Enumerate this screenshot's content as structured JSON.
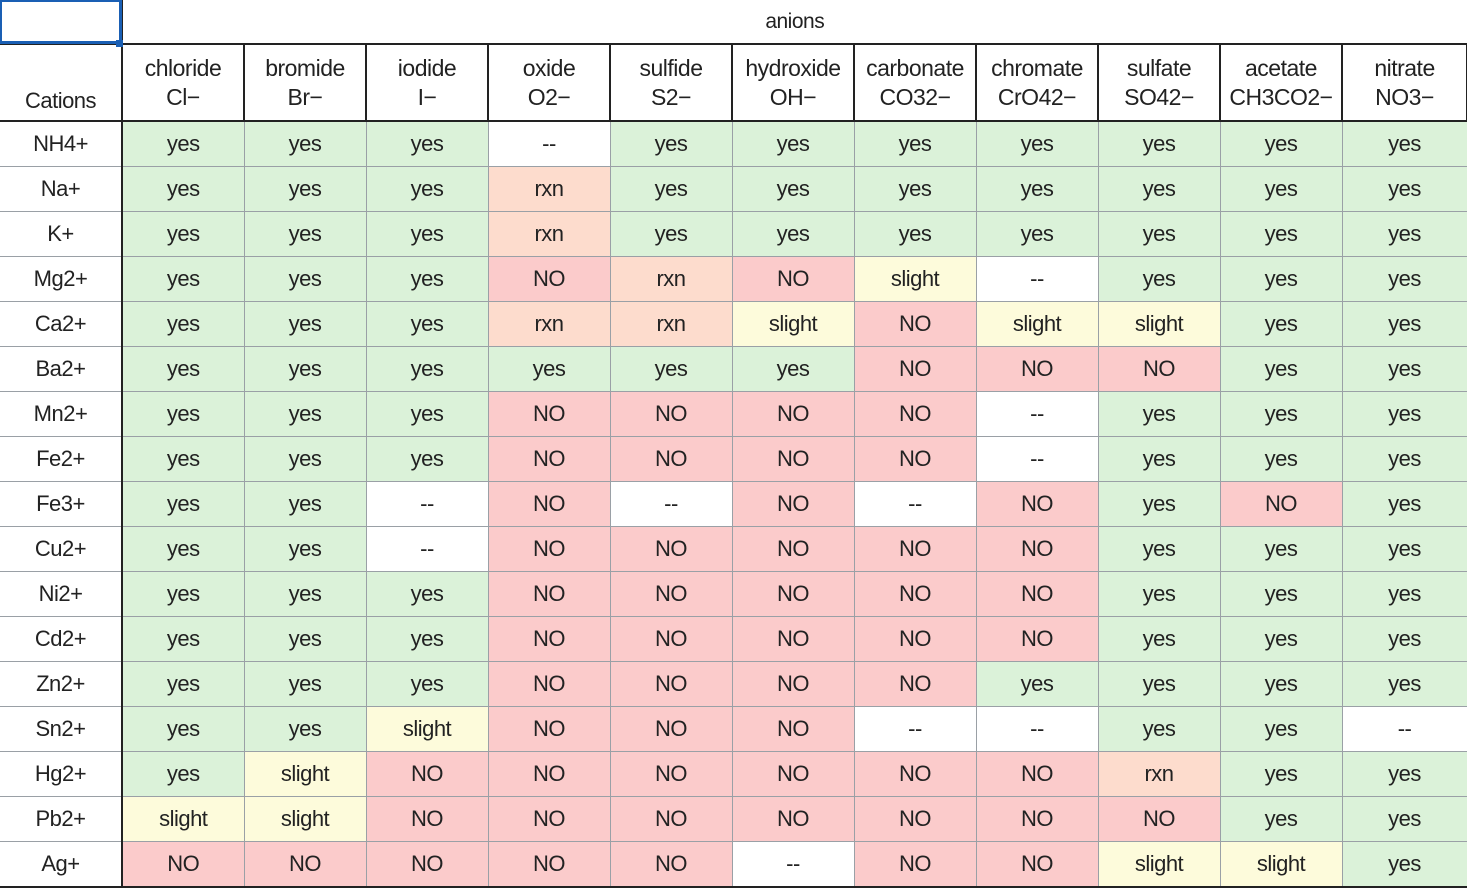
{
  "header": {
    "group_label": "anions",
    "row_header_label": "Cations"
  },
  "anions": [
    {
      "name": "chloride",
      "formula": "Cl−"
    },
    {
      "name": "bromide",
      "formula": "Br−"
    },
    {
      "name": "iodide",
      "formula": "I−"
    },
    {
      "name": "oxide",
      "formula": "O2−"
    },
    {
      "name": "sulfide",
      "formula": "S2−"
    },
    {
      "name": "hydroxide",
      "formula": "OH−"
    },
    {
      "name": "carbonate",
      "formula": "CO32−"
    },
    {
      "name": "chromate",
      "formula": "CrO42−"
    },
    {
      "name": "sulfate",
      "formula": "SO42−"
    },
    {
      "name": "acetate",
      "formula": "CH3CO2−"
    },
    {
      "name": "nitrate",
      "formula": "NO3−"
    }
  ],
  "rows": [
    {
      "cation": "NH4+",
      "cells": [
        "yes",
        "yes",
        "yes",
        "--",
        "yes",
        "yes",
        "yes",
        "yes",
        "yes",
        "yes",
        "yes"
      ]
    },
    {
      "cation": "Na+",
      "cells": [
        "yes",
        "yes",
        "yes",
        "rxn",
        "yes",
        "yes",
        "yes",
        "yes",
        "yes",
        "yes",
        "yes"
      ]
    },
    {
      "cation": "K+",
      "cells": [
        "yes",
        "yes",
        "yes",
        "rxn",
        "yes",
        "yes",
        "yes",
        "yes",
        "yes",
        "yes",
        "yes"
      ]
    },
    {
      "cation": "Mg2+",
      "cells": [
        "yes",
        "yes",
        "yes",
        "NO",
        "rxn",
        "NO",
        "slight",
        "--",
        "yes",
        "yes",
        "yes"
      ]
    },
    {
      "cation": "Ca2+",
      "cells": [
        "yes",
        "yes",
        "yes",
        "rxn",
        "rxn",
        "slight",
        "NO",
        "slight",
        "slight",
        "yes",
        "yes"
      ]
    },
    {
      "cation": "Ba2+",
      "cells": [
        "yes",
        "yes",
        "yes",
        "yes",
        "yes",
        "yes",
        "NO",
        "NO",
        "NO",
        "yes",
        "yes"
      ]
    },
    {
      "cation": "Mn2+",
      "cells": [
        "yes",
        "yes",
        "yes",
        "NO",
        "NO",
        "NO",
        "NO",
        "--",
        "yes",
        "yes",
        "yes"
      ]
    },
    {
      "cation": "Fe2+",
      "cells": [
        "yes",
        "yes",
        "yes",
        "NO",
        "NO",
        "NO",
        "NO",
        "--",
        "yes",
        "yes",
        "yes"
      ]
    },
    {
      "cation": "Fe3+",
      "cells": [
        "yes",
        "yes",
        "--",
        "NO",
        "--",
        "NO",
        "--",
        "NO",
        "yes",
        "NO",
        "yes"
      ]
    },
    {
      "cation": "Cu2+",
      "cells": [
        "yes",
        "yes",
        "--",
        "NO",
        "NO",
        "NO",
        "NO",
        "NO",
        "yes",
        "yes",
        "yes"
      ]
    },
    {
      "cation": "Ni2+",
      "cells": [
        "yes",
        "yes",
        "yes",
        "NO",
        "NO",
        "NO",
        "NO",
        "NO",
        "yes",
        "yes",
        "yes"
      ]
    },
    {
      "cation": "Cd2+",
      "cells": [
        "yes",
        "yes",
        "yes",
        "NO",
        "NO",
        "NO",
        "NO",
        "NO",
        "yes",
        "yes",
        "yes"
      ]
    },
    {
      "cation": "Zn2+",
      "cells": [
        "yes",
        "yes",
        "yes",
        "NO",
        "NO",
        "NO",
        "NO",
        "yes",
        "yes",
        "yes",
        "yes"
      ]
    },
    {
      "cation": "Sn2+",
      "cells": [
        "yes",
        "yes",
        "slight",
        "NO",
        "NO",
        "NO",
        "--",
        "--",
        "yes",
        "yes",
        "--"
      ]
    },
    {
      "cation": "Hg2+",
      "cells": [
        "yes",
        "slight",
        "NO",
        "NO",
        "NO",
        "NO",
        "NO",
        "NO",
        "rxn",
        "yes",
        "yes"
      ]
    },
    {
      "cation": "Pb2+",
      "cells": [
        "slight",
        "slight",
        "NO",
        "NO",
        "NO",
        "NO",
        "NO",
        "NO",
        "NO",
        "yes",
        "yes"
      ]
    },
    {
      "cation": "Ag+",
      "cells": [
        "NO",
        "NO",
        "NO",
        "NO",
        "NO",
        "--",
        "NO",
        "NO",
        "slight",
        "slight",
        "yes"
      ]
    }
  ],
  "colors": {
    "yes": "#dbf2d9",
    "slight": "#fdfbdb",
    "rxn": "#fddccd",
    "NO": "#fbcbcb",
    "--": "#ffffff",
    "selection": "#1a5fb4"
  }
}
